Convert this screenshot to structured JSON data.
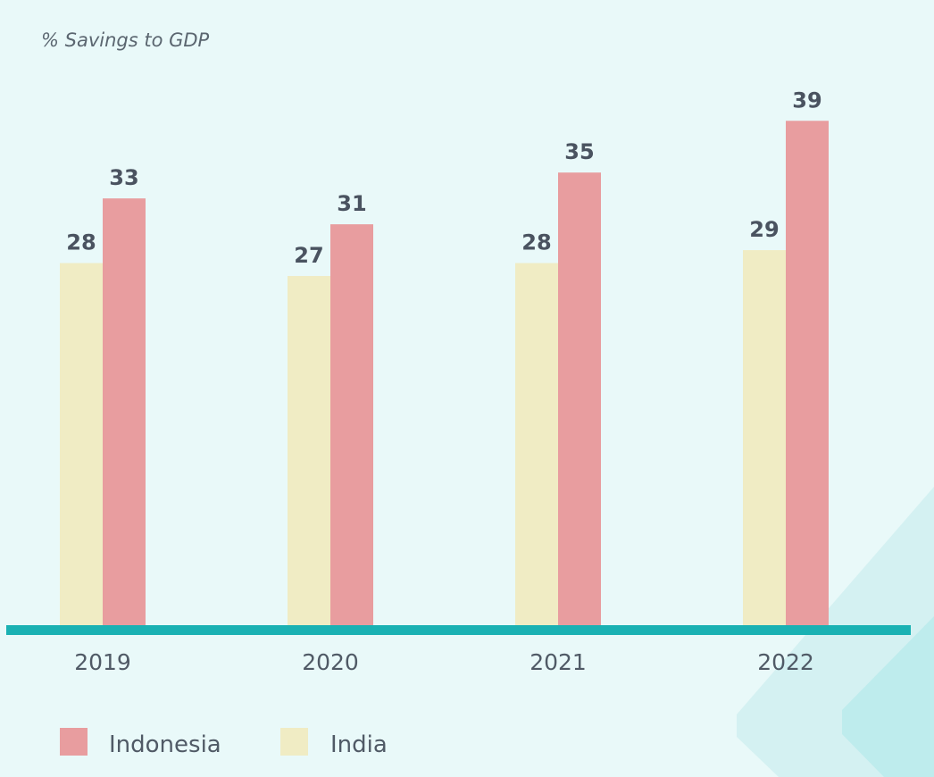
{
  "chart_data": {
    "type": "bar",
    "title": "% Savings to GDP",
    "categories": [
      "2019",
      "2020",
      "2021",
      "2022"
    ],
    "series": [
      {
        "name": "India",
        "values": [
          28,
          27,
          28,
          29
        ],
        "color": "#f0ecc4"
      },
      {
        "name": "Indonesia",
        "values": [
          33,
          31,
          35,
          39
        ],
        "color": "#e89d9f"
      }
    ],
    "legend": {
      "placement": "bottom-left",
      "order": [
        "Indonesia",
        "India"
      ]
    },
    "ylim": [
      0,
      40
    ],
    "grid": false,
    "axis_color": "#1ab1b3",
    "xlabel": "",
    "ylabel": ""
  }
}
